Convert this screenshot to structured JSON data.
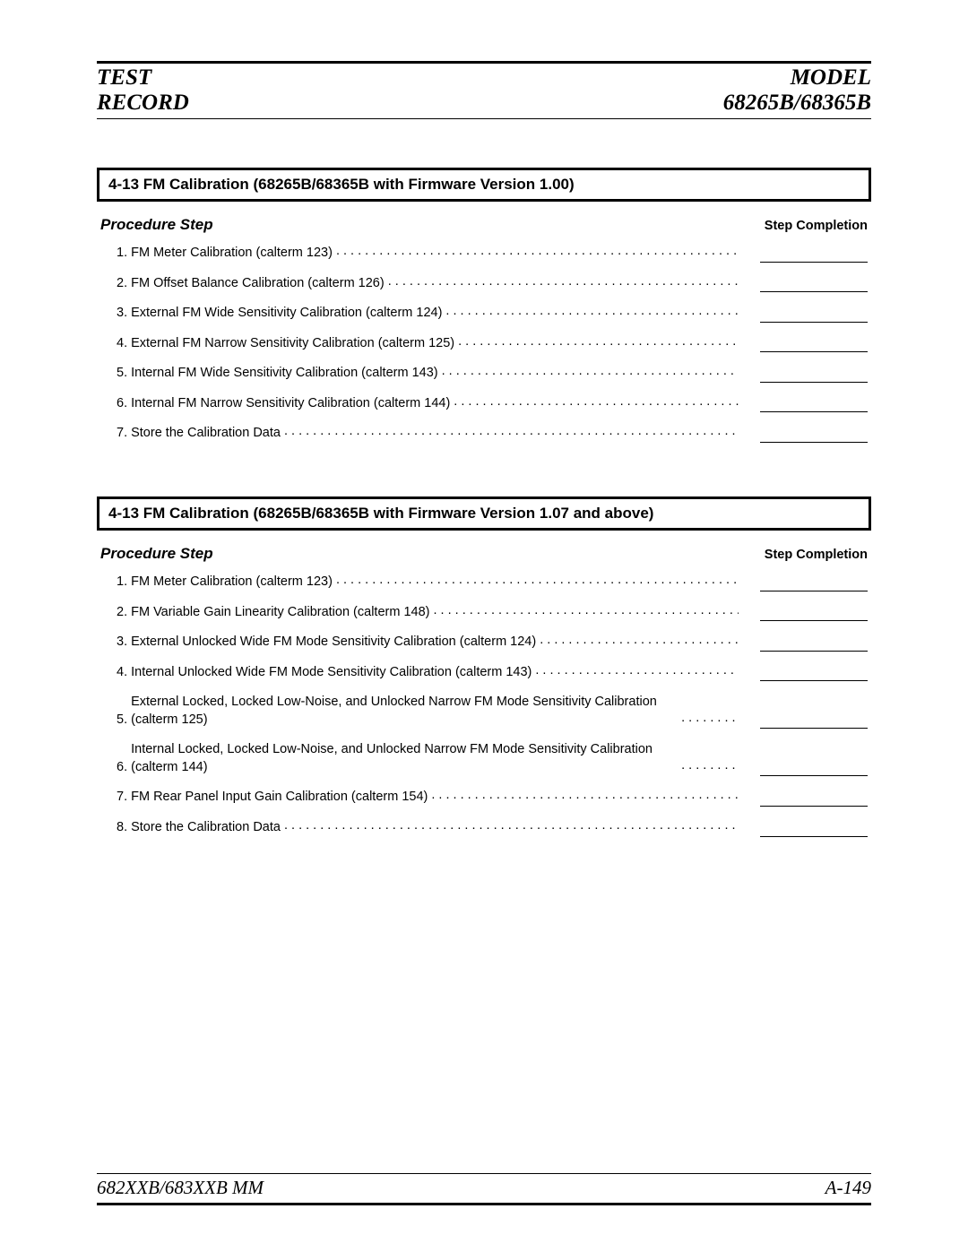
{
  "header": {
    "left_line1": "TEST",
    "left_line2": "RECORD",
    "right_line1": "MODEL",
    "right_line2": "68265B/68365B"
  },
  "sections": [
    {
      "title": "4-13 FM Calibration (68265B/68365B with Firmware Version 1.00)",
      "procedure_label": "Procedure Step",
      "completion_label": "Step Completion",
      "steps": [
        "FM Meter Calibration (calterm 123)",
        "FM Offset Balance Calibration (calterm 126)",
        "External FM Wide Sensitivity Calibration (calterm 124)",
        "External FM Narrow Sensitivity Calibration (calterm 125)",
        "Internal FM Wide Sensitivity Calibration (calterm 143)",
        "Internal FM Narrow Sensitivity Calibration (calterm 144)",
        "Store the Calibration Data"
      ]
    },
    {
      "title": "4-13 FM Calibration (68265B/68365B with Firmware Version 1.07 and above)",
      "procedure_label": "Procedure Step",
      "completion_label": "Step Completion",
      "steps": [
        "FM Meter Calibration (calterm 123)",
        "FM Variable Gain Linearity Calibration (calterm 148)",
        "External Unlocked Wide FM Mode Sensitivity Calibration (calterm 124)",
        "Internal Unlocked Wide FM Mode Sensitivity Calibration (calterm 143)",
        "External Locked, Locked Low-Noise, and Unlocked Narrow FM Mode Sensitivity Calibration (calterm 125)",
        "Internal Locked, Locked Low-Noise, and Unlocked Narrow FM Mode Sensitivity Calibration (calterm 144)",
        "FM Rear Panel Input Gain Calibration (calterm 154)",
        "Store the Calibration Data"
      ]
    }
  ],
  "footer": {
    "left": "682XXB/683XXB MM",
    "right": "A-149"
  }
}
